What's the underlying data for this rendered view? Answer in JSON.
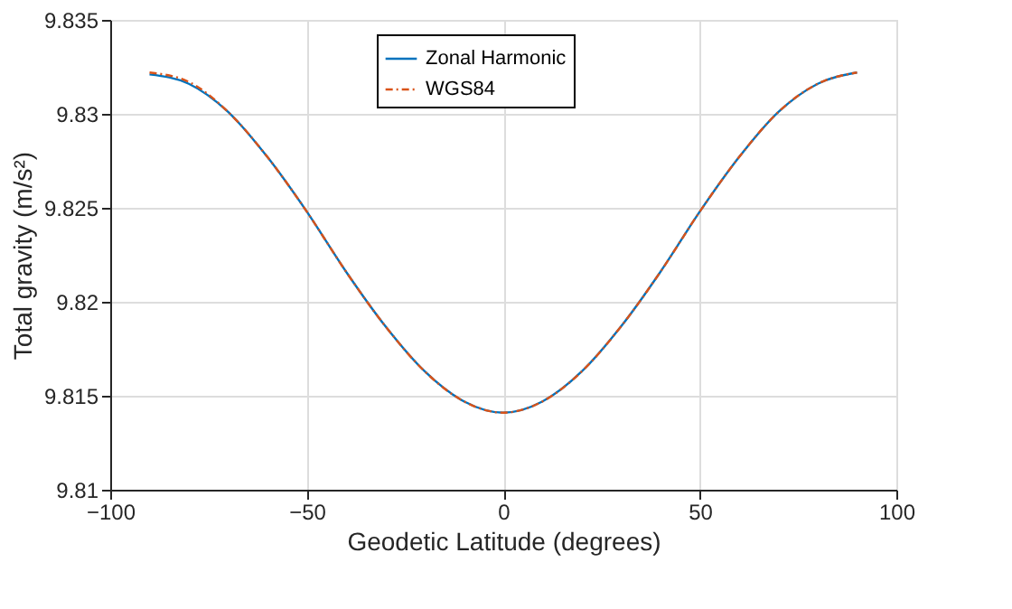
{
  "chart_data": {
    "type": "line",
    "xlabel": "Geodetic Latitude (degrees)",
    "ylabel": "Total gravity (m/s²)",
    "x": [
      -90,
      -80,
      -70,
      -60,
      -50,
      -40,
      -30,
      -20,
      -10,
      0,
      10,
      20,
      30,
      40,
      50,
      60,
      70,
      80,
      90
    ],
    "series": [
      {
        "name": "Zonal Harmonic",
        "color": "#0072bd",
        "line_style": "solid",
        "values": [
          9.8321,
          9.8316,
          9.8301,
          9.8277,
          9.8248,
          9.8216,
          9.8187,
          9.8163,
          9.8147,
          9.8141,
          9.8147,
          9.8163,
          9.8187,
          9.8216,
          9.8248,
          9.8277,
          9.8301,
          9.8316,
          9.8322
        ]
      },
      {
        "name": "WGS84",
        "color": "#d95319",
        "line_style": "dashdot",
        "values": [
          9.8322,
          9.8317,
          9.8301,
          9.8277,
          9.8248,
          9.8216,
          9.8187,
          9.8163,
          9.8147,
          9.8141,
          9.8147,
          9.8163,
          9.8187,
          9.8216,
          9.8248,
          9.8277,
          9.8301,
          9.8316,
          9.8322
        ]
      }
    ],
    "xlim": [
      -100,
      100
    ],
    "xticks": [
      -100,
      -50,
      0,
      50,
      100
    ],
    "ylim": [
      9.81,
      9.835
    ],
    "yticks": [
      9.81,
      9.815,
      9.82,
      9.825,
      9.83,
      9.835
    ],
    "grid": true,
    "legend": "top",
    "marker": "none"
  }
}
